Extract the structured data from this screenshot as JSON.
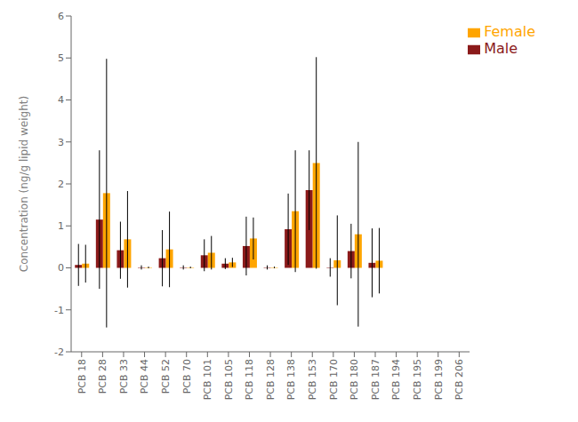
{
  "chart_data": {
    "type": "bar",
    "categories": [
      "PCB 18",
      "PCB 28",
      "PCB 33",
      "PCB 44",
      "PCB 52",
      "PCB 70",
      "PCB 101",
      "PCB 105",
      "PCB 118",
      "PCB 128",
      "PCB 138",
      "PCB 153",
      "PCB 170",
      "PCB 180",
      "PCB 187",
      "PCB 194",
      "PCB 195",
      "PCB 199",
      "PCB 206"
    ],
    "series": [
      {
        "name": "Male",
        "color": "#8B1A1A",
        "values": [
          0.07,
          1.15,
          0.42,
          0.01,
          0.23,
          0.01,
          0.3,
          0.1,
          0.52,
          0.01,
          0.92,
          1.85,
          0.01,
          0.4,
          0.12,
          0.0,
          0.0,
          0.0,
          0.0
        ],
        "errors": [
          0.5,
          1.65,
          0.68,
          0.05,
          0.67,
          0.05,
          0.38,
          0.13,
          0.7,
          0.05,
          0.85,
          0.95,
          0.22,
          0.65,
          0.82,
          0.0,
          0.0,
          0.0,
          0.0
        ]
      },
      {
        "name": "Female",
        "color": "#FFA500",
        "values": [
          0.1,
          1.78,
          0.68,
          0.01,
          0.44,
          0.01,
          0.36,
          0.13,
          0.7,
          0.01,
          1.35,
          2.5,
          0.18,
          0.8,
          0.17,
          0.0,
          0.0,
          0.0,
          0.0
        ],
        "errors": [
          0.45,
          3.2,
          1.15,
          0.02,
          0.9,
          0.02,
          0.4,
          0.11,
          0.5,
          0.02,
          1.45,
          2.52,
          1.07,
          2.2,
          0.78,
          0.0,
          0.0,
          0.0,
          0.0
        ]
      }
    ],
    "ylabel": "Concentration (ng/g lipid weight)",
    "ylim": [
      -2,
      6
    ],
    "yticks": [
      -2,
      -1,
      0,
      1,
      2,
      3,
      4,
      5,
      6
    ],
    "legend": "upper right",
    "grid": false
  }
}
